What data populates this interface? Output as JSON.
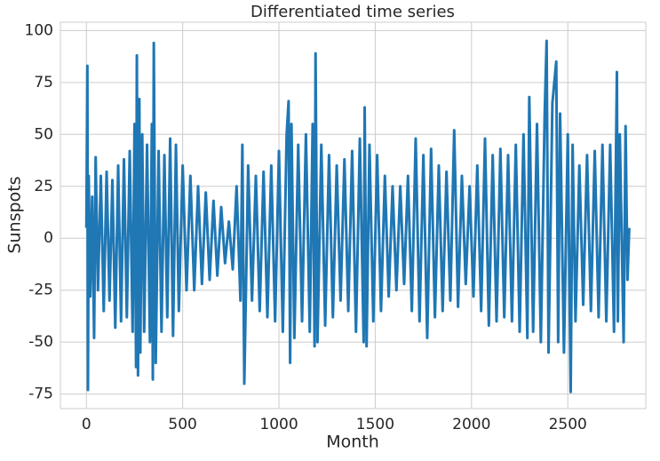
{
  "chart_data": {
    "type": "line",
    "title": "Differentiated time series",
    "x_label": "Month",
    "y_label": "Sunspots",
    "x": [
      0,
      5,
      8,
      12,
      20,
      30,
      40,
      48,
      60,
      75,
      90,
      105,
      120,
      135,
      150,
      165,
      180,
      195,
      210,
      225,
      240,
      250,
      258,
      262,
      268,
      275,
      280,
      290,
      300,
      315,
      330,
      340,
      345,
      350,
      360,
      375,
      390,
      405,
      420,
      435,
      450,
      465,
      480,
      500,
      520,
      540,
      560,
      580,
      600,
      620,
      640,
      660,
      680,
      700,
      720,
      740,
      760,
      780,
      800,
      810,
      820,
      840,
      860,
      880,
      900,
      920,
      940,
      960,
      980,
      1000,
      1020,
      1040,
      1050,
      1058,
      1065,
      1080,
      1100,
      1120,
      1140,
      1160,
      1175,
      1185,
      1190,
      1200,
      1220,
      1240,
      1260,
      1280,
      1300,
      1320,
      1340,
      1360,
      1380,
      1400,
      1420,
      1440,
      1445,
      1455,
      1470,
      1490,
      1510,
      1530,
      1550,
      1570,
      1590,
      1610,
      1630,
      1650,
      1670,
      1690,
      1710,
      1730,
      1750,
      1770,
      1790,
      1810,
      1830,
      1850,
      1870,
      1890,
      1910,
      1930,
      1950,
      1970,
      1990,
      2010,
      2030,
      2050,
      2070,
      2090,
      2110,
      2130,
      2150,
      2170,
      2190,
      2210,
      2230,
      2250,
      2270,
      2290,
      2300,
      2320,
      2340,
      2360,
      2380,
      2390,
      2400,
      2420,
      2440,
      2450,
      2460,
      2480,
      2500,
      2515,
      2525,
      2540,
      2560,
      2580,
      2600,
      2620,
      2640,
      2660,
      2680,
      2700,
      2720,
      2740,
      2755,
      2760,
      2770,
      2790,
      2800,
      2810,
      2819
    ],
    "series": [
      {
        "name": "Sunspots",
        "color": "#1f77b4",
        "values": [
          5,
          83,
          -73,
          30,
          -28,
          20,
          -48,
          39,
          -25,
          30,
          -35,
          32,
          -30,
          28,
          -43,
          35,
          -40,
          38,
          -38,
          42,
          -45,
          55,
          -62,
          88,
          -66,
          67,
          -55,
          50,
          -45,
          45,
          -50,
          55,
          -68,
          94,
          -60,
          42,
          -45,
          40,
          -38,
          48,
          -47,
          45,
          -35,
          35,
          -25,
          30,
          -25,
          25,
          -22,
          22,
          -20,
          18,
          -18,
          15,
          -12,
          8,
          -15,
          25,
          -30,
          45,
          -70,
          35,
          -30,
          30,
          -35,
          32,
          -38,
          35,
          -40,
          42,
          -45,
          50,
          66,
          -60,
          55,
          -48,
          45,
          -40,
          50,
          -45,
          55,
          -52,
          89,
          -50,
          45,
          -42,
          40,
          -38,
          35,
          -30,
          38,
          -35,
          42,
          -45,
          48,
          -50,
          63,
          -52,
          45,
          -40,
          40,
          -35,
          30,
          -28,
          25,
          -25,
          25,
          -22,
          30,
          -35,
          48,
          -40,
          40,
          -48,
          43,
          -38,
          35,
          -35,
          32,
          -30,
          52,
          -33,
          30,
          -22,
          25,
          -28,
          35,
          -35,
          48,
          -42,
          40,
          -40,
          43,
          -38,
          40,
          -40,
          45,
          -45,
          50,
          -48,
          68,
          -45,
          55,
          -50,
          60,
          95,
          -55,
          65,
          85,
          -50,
          60,
          -55,
          50,
          -74,
          45,
          -40,
          35,
          -32,
          40,
          -35,
          42,
          -38,
          45,
          -40,
          45,
          -45,
          80,
          -40,
          50,
          -50,
          54,
          -20,
          5
        ]
      }
    ],
    "xlim": [
      -135,
      2905
    ],
    "ylim": [
      -82,
      104
    ],
    "xticks": [
      0,
      500,
      1000,
      1500,
      2000,
      2500
    ],
    "yticks": [
      -75,
      -50,
      -25,
      0,
      25,
      50,
      75,
      100
    ],
    "grid": true
  }
}
